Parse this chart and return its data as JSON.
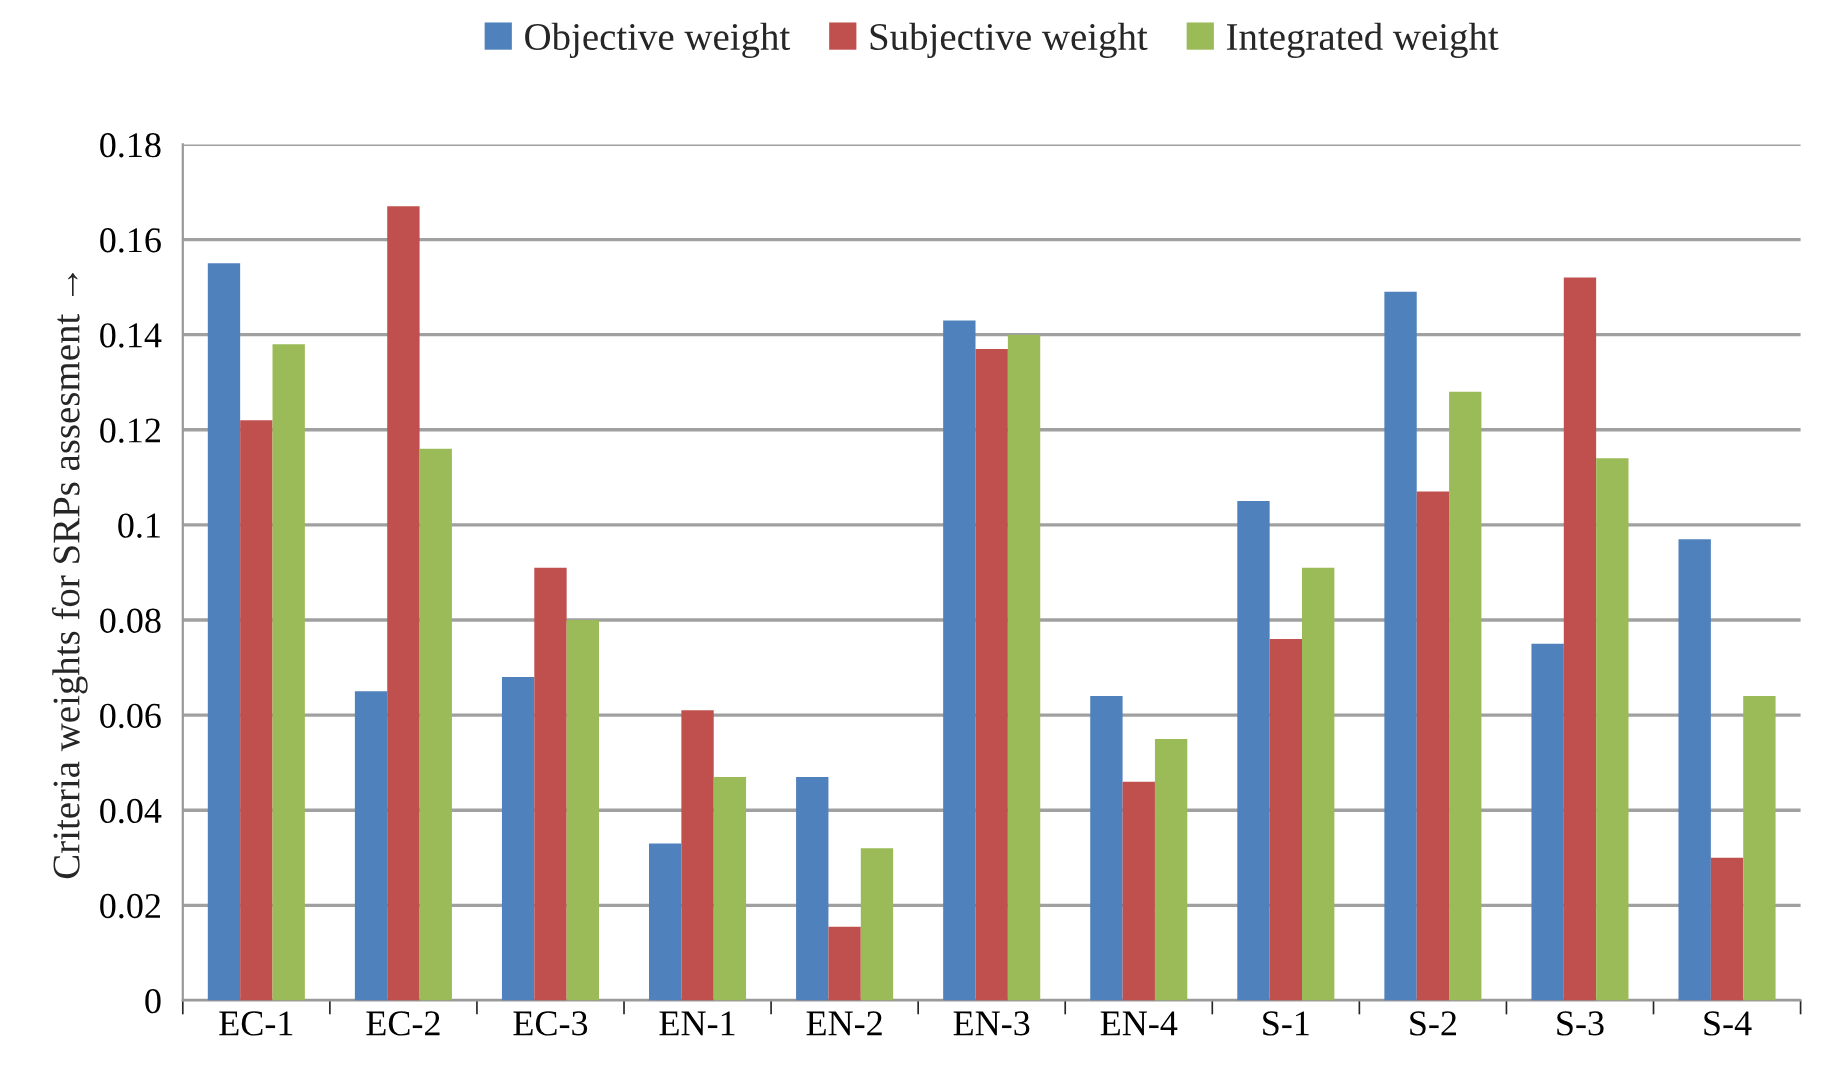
{
  "chart_data": {
    "type": "bar",
    "ylabel": "Criteria weights for SRPs assesment →",
    "categories": [
      "EC-1",
      "EC-2",
      "EC-3",
      "EN-1",
      "EN-2",
      "EN-3",
      "EN-4",
      "S-1",
      "S-2",
      "S-3",
      "S-4"
    ],
    "series": [
      {
        "name": "Objective weight",
        "color": "#4f81bd",
        "values": [
          0.155,
          0.065,
          0.068,
          0.033,
          0.047,
          0.143,
          0.064,
          0.105,
          0.149,
          0.075,
          0.097
        ]
      },
      {
        "name": "Subjective weight",
        "color": "#c0504d",
        "values": [
          0.122,
          0.167,
          0.091,
          0.061,
          0.0155,
          0.137,
          0.046,
          0.076,
          0.107,
          0.152,
          0.03
        ]
      },
      {
        "name": "Integrated weight",
        "color": "#9bbb59",
        "values": [
          0.138,
          0.116,
          0.08,
          0.047,
          0.032,
          0.14,
          0.055,
          0.091,
          0.128,
          0.114,
          0.064
        ]
      }
    ],
    "ylim": [
      0,
      0.18
    ],
    "yticks": [
      0,
      0.02,
      0.04,
      0.06,
      0.08,
      {
        "value": 0.1,
        "label": "0.1"
      },
      0.12,
      0.14,
      0.16,
      0.18
    ],
    "grid": "y",
    "legend": "top"
  }
}
